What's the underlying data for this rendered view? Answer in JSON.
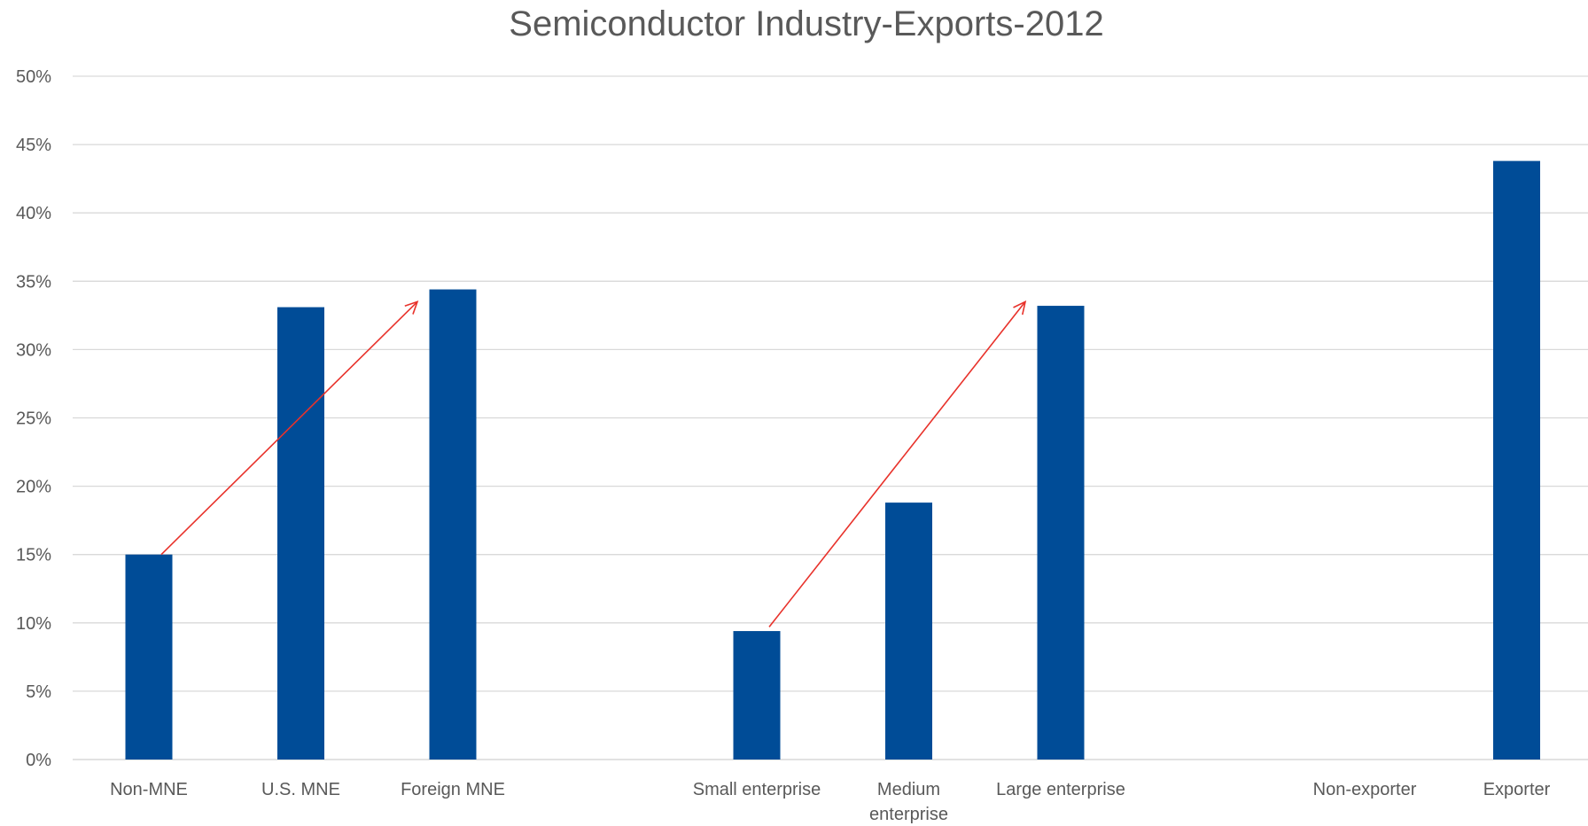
{
  "chart_data": {
    "type": "bar",
    "title": "Semiconductor Industry-Exports-2012",
    "xlabel": "",
    "ylabel": "",
    "ylim": [
      0,
      0.5
    ],
    "y_ticks": [
      0,
      0.05,
      0.1,
      0.15,
      0.2,
      0.25,
      0.3,
      0.35,
      0.4,
      0.45,
      0.5
    ],
    "y_tick_labels": [
      "0%",
      "5%",
      "10%",
      "15%",
      "20%",
      "25%",
      "30%",
      "35%",
      "40%",
      "45%",
      "50%"
    ],
    "grid": true,
    "legend": "none",
    "colors": {
      "bar": "#004c97",
      "arrow": "#e8322b",
      "grid": "#d9d9d9",
      "text": "#595959"
    },
    "categories": [
      "Non-MNE",
      "U.S. MNE",
      "Foreign MNE",
      "",
      "Small enterprise",
      "Medium enterprise",
      "Large enterprise",
      "",
      "Non-exporter",
      "Exporter"
    ],
    "category_label_lines": [
      [
        "Non-MNE"
      ],
      [
        "U.S. MNE"
      ],
      [
        "Foreign MNE"
      ],
      [],
      [
        "Small enterprise"
      ],
      [
        "Medium",
        "enterprise"
      ],
      [
        "Large enterprise"
      ],
      [],
      [
        "Non-exporter"
      ],
      [
        "Exporter"
      ]
    ],
    "values": [
      0.15,
      0.331,
      0.344,
      null,
      0.094,
      0.188,
      0.332,
      null,
      0,
      0.438
    ],
    "annotations": [
      {
        "type": "arrow",
        "from": {
          "category_index": 0,
          "value": 0.15
        },
        "to": {
          "category_index": 2,
          "value": 0.335
        }
      },
      {
        "type": "arrow",
        "from": {
          "category_index": 4,
          "value": 0.097
        },
        "to": {
          "category_index": 6,
          "value": 0.335
        }
      }
    ]
  }
}
